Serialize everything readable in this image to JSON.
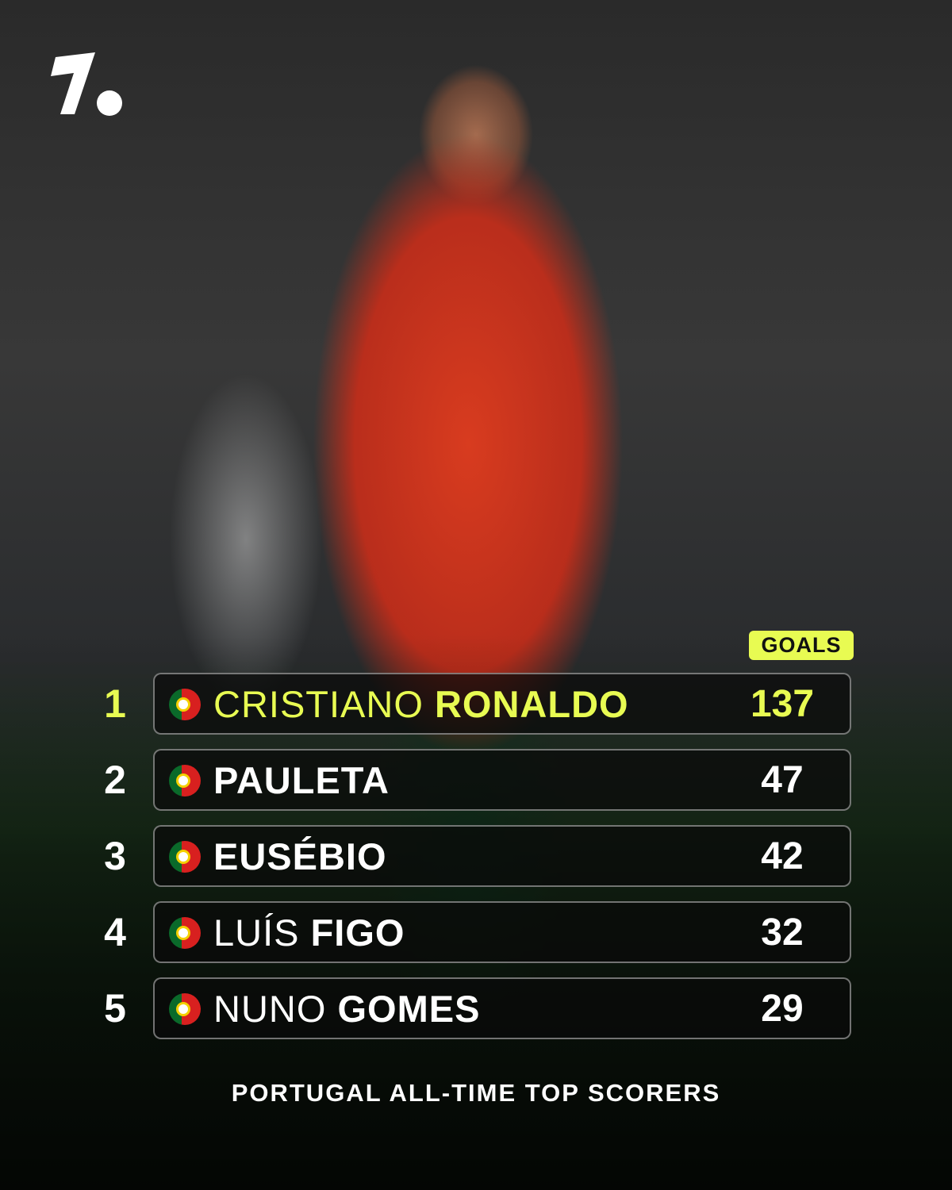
{
  "brand": {
    "logo": "1."
  },
  "header": {
    "column_label": "GOALS"
  },
  "accent_color": "#e8fb52",
  "scorers": [
    {
      "rank": "1",
      "first": "CRISTIANO",
      "last": "RONALDO",
      "goals": "137",
      "flag": "portugal-flag-icon"
    },
    {
      "rank": "2",
      "first": "",
      "last": "PAULETA",
      "goals": "47",
      "flag": "portugal-flag-icon"
    },
    {
      "rank": "3",
      "first": "",
      "last": "EUSÉBIO",
      "goals": "42",
      "flag": "portugal-flag-icon"
    },
    {
      "rank": "4",
      "first": "LUÍS",
      "last": "FIGO",
      "goals": "32",
      "flag": "portugal-flag-icon"
    },
    {
      "rank": "5",
      "first": "NUNO",
      "last": "GOMES",
      "goals": "29",
      "flag": "portugal-flag-icon"
    }
  ],
  "footer": {
    "title": "PORTUGAL ALL-TIME TOP SCORERS"
  }
}
